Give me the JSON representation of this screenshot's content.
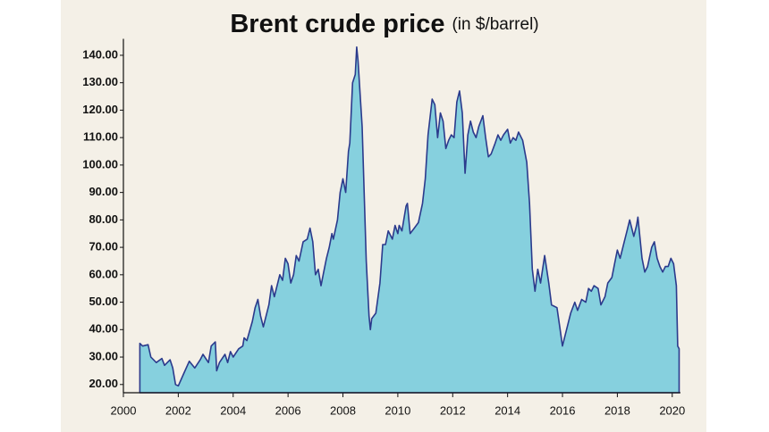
{
  "chart_data": {
    "type": "area",
    "title": "Brent crude price",
    "subtitle": "(in $/barrel)",
    "x": [
      2000.6,
      2000.7,
      2000.9,
      2001.0,
      2001.2,
      2001.4,
      2001.5,
      2001.7,
      2001.8,
      2001.9,
      2002.0,
      2002.2,
      2002.4,
      2002.6,
      2002.8,
      2002.9,
      2003.1,
      2003.2,
      2003.35,
      2003.4,
      2003.5,
      2003.7,
      2003.8,
      2003.9,
      2004.0,
      2004.2,
      2004.35,
      2004.4,
      2004.5,
      2004.7,
      2004.8,
      2004.9,
      2005.0,
      2005.1,
      2005.3,
      2005.4,
      2005.5,
      2005.7,
      2005.8,
      2005.9,
      2006.0,
      2006.1,
      2006.2,
      2006.3,
      2006.4,
      2006.55,
      2006.7,
      2006.8,
      2006.9,
      2007.0,
      2007.1,
      2007.2,
      2007.3,
      2007.4,
      2007.5,
      2007.6,
      2007.65,
      2007.8,
      2007.9,
      2008.0,
      2008.1,
      2008.2,
      2008.25,
      2008.35,
      2008.45,
      2008.5,
      2008.55,
      2008.7,
      2008.85,
      2008.95,
      2009.0,
      2009.05,
      2009.2,
      2009.35,
      2009.45,
      2009.55,
      2009.65,
      2009.8,
      2009.9,
      2010.0,
      2010.05,
      2010.15,
      2010.3,
      2010.35,
      2010.45,
      2010.6,
      2010.75,
      2010.9,
      2011.0,
      2011.1,
      2011.25,
      2011.35,
      2011.45,
      2011.55,
      2011.65,
      2011.75,
      2011.85,
      2011.95,
      2012.05,
      2012.15,
      2012.25,
      2012.35,
      2012.45,
      2012.55,
      2012.65,
      2012.75,
      2012.85,
      2012.95,
      2013.1,
      2013.2,
      2013.3,
      2013.4,
      2013.55,
      2013.65,
      2013.75,
      2013.85,
      2014.0,
      2014.1,
      2014.2,
      2014.3,
      2014.4,
      2014.55,
      2014.7,
      2014.8,
      2014.9,
      2015.0,
      2015.1,
      2015.2,
      2015.35,
      2015.5,
      2015.6,
      2015.8,
      2015.9,
      2016.0,
      2016.15,
      2016.3,
      2016.45,
      2016.55,
      2016.7,
      2016.85,
      2016.95,
      2017.05,
      2017.15,
      2017.3,
      2017.4,
      2017.55,
      2017.65,
      2017.8,
      2017.9,
      2018.0,
      2018.1,
      2018.25,
      2018.35,
      2018.45,
      2018.6,
      2018.7,
      2018.75,
      2018.9,
      2019.0,
      2019.1,
      2019.25,
      2019.35,
      2019.45,
      2019.55,
      2019.65,
      2019.75,
      2019.85,
      2019.95,
      2020.05,
      2020.15,
      2020.2,
      2020.25
    ],
    "values": [
      35,
      34,
      34.5,
      30,
      28,
      29.5,
      27,
      29,
      26,
      20,
      19.5,
      24,
      28.5,
      26,
      29,
      31,
      28,
      34,
      35.5,
      25,
      28,
      31,
      28,
      32,
      30,
      33,
      34,
      37,
      36,
      43,
      48,
      51,
      45,
      41,
      49,
      56,
      52,
      60,
      58,
      66,
      64,
      57,
      60,
      67,
      65,
      72,
      73,
      77,
      72,
      60,
      62,
      56,
      61,
      66,
      70,
      75,
      73,
      80,
      90,
      95,
      90,
      105,
      108,
      130,
      133,
      143,
      138,
      114,
      65,
      45,
      40,
      44,
      46,
      57,
      71,
      71,
      76,
      73,
      78,
      75,
      78,
      76,
      85,
      86,
      75,
      77,
      79,
      86,
      95,
      111,
      124,
      122,
      110,
      119,
      116,
      106,
      109,
      111,
      110,
      123,
      127,
      119,
      97,
      111,
      116,
      112,
      110,
      114,
      118,
      110,
      103,
      104,
      108,
      111,
      109,
      111,
      113,
      108,
      110,
      109,
      112,
      109,
      101,
      86,
      62,
      54,
      62,
      57,
      67,
      57,
      49,
      48,
      41,
      34,
      40,
      46,
      50,
      47,
      51,
      50,
      55,
      54,
      56,
      55,
      49,
      52,
      57,
      59,
      64,
      69,
      66,
      72,
      76,
      80,
      74,
      78,
      81,
      66,
      61,
      63,
      70,
      72,
      66,
      63,
      61,
      63,
      63,
      66,
      64,
      56,
      34,
      33
    ],
    "color": "#86d0de",
    "edgecolor": "#2b3a8c",
    "xlim": [
      2000,
      2020.3
    ],
    "xticks": [
      2000,
      2002,
      2004,
      2006,
      2008,
      2010,
      2012,
      2014,
      2016,
      2018,
      2020
    ],
    "ylim": [
      17,
      146
    ],
    "yticks": [
      {
        "value": 20,
        "label": "20.00"
      },
      {
        "value": 30,
        "label": "30.00"
      },
      {
        "value": 40,
        "label": "40.00"
      },
      {
        "value": 50,
        "label": "50.00"
      },
      {
        "value": 60,
        "label": "60.00"
      },
      {
        "value": 70,
        "label": "70.00"
      },
      {
        "value": 80,
        "label": "80.00"
      },
      {
        "value": 90,
        "label": "90.00"
      },
      {
        "value": 100,
        "label": "100.00"
      },
      {
        "value": 110,
        "label": "110.00"
      },
      {
        "value": 120,
        "label": "120.00"
      },
      {
        "value": 130,
        "label": "130.00"
      },
      {
        "value": 140,
        "label": "140.00"
      }
    ],
    "grid": false
  }
}
